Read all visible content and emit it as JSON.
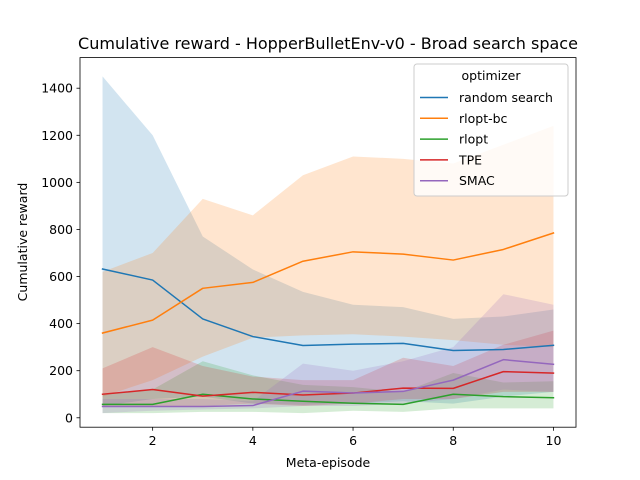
{
  "chart_data": {
    "type": "line",
    "title": "Cumulative reward - HopperBulletEnv-v0 - Broad search space",
    "xlabel": "Meta-episode",
    "ylabel": "Cumulative reward",
    "x": [
      1,
      2,
      3,
      4,
      5,
      6,
      7,
      8,
      9,
      10
    ],
    "xlim": [
      0.55,
      10.45
    ],
    "ylim": [
      -40,
      1530
    ],
    "xticks": [
      2,
      4,
      6,
      8,
      10
    ],
    "yticks": [
      0,
      200,
      400,
      600,
      800,
      1000,
      1200,
      1400
    ],
    "grid": false,
    "legend": {
      "title": "optimizer",
      "placement": "top-right"
    },
    "series": [
      {
        "name": "random search",
        "color": "#1f77b4",
        "values": [
          632,
          585,
          420,
          345,
          307,
          313,
          316,
          286,
          290,
          308
        ],
        "lower": [
          50,
          80,
          90,
          60,
          55,
          60,
          70,
          60,
          90,
          110
        ],
        "upper": [
          1450,
          1200,
          770,
          630,
          535,
          480,
          470,
          420,
          430,
          460
        ]
      },
      {
        "name": "rlopt-bc",
        "color": "#ff7f0e",
        "values": [
          360,
          415,
          550,
          575,
          665,
          705,
          695,
          670,
          715,
          785
        ],
        "lower": [
          90,
          160,
          260,
          340,
          350,
          355,
          345,
          330,
          310,
          300
        ],
        "upper": [
          620,
          700,
          930,
          860,
          1030,
          1110,
          1100,
          1080,
          1160,
          1240
        ]
      },
      {
        "name": "rlopt",
        "color": "#2ca02c",
        "values": [
          57,
          57,
          100,
          80,
          70,
          62,
          57,
          100,
          90,
          85
        ],
        "lower": [
          20,
          20,
          25,
          25,
          20,
          30,
          25,
          40,
          40,
          40
        ],
        "upper": [
          100,
          120,
          240,
          180,
          140,
          130,
          110,
          190,
          150,
          155
        ]
      },
      {
        "name": "TPE",
        "color": "#d62728",
        "values": [
          100,
          120,
          92,
          108,
          97,
          105,
          126,
          125,
          196,
          190
        ],
        "lower": [
          50,
          50,
          50,
          60,
          50,
          60,
          80,
          80,
          110,
          110
        ],
        "upper": [
          210,
          300,
          220,
          175,
          160,
          160,
          255,
          220,
          310,
          370
        ]
      },
      {
        "name": "SMAC",
        "color": "#9467bd",
        "values": [
          48,
          48,
          48,
          52,
          113,
          105,
          112,
          160,
          247,
          227
        ],
        "lower": [
          20,
          30,
          35,
          40,
          50,
          50,
          60,
          80,
          120,
          110
        ],
        "upper": [
          80,
          80,
          80,
          70,
          230,
          200,
          240,
          300,
          525,
          480
        ]
      }
    ]
  }
}
